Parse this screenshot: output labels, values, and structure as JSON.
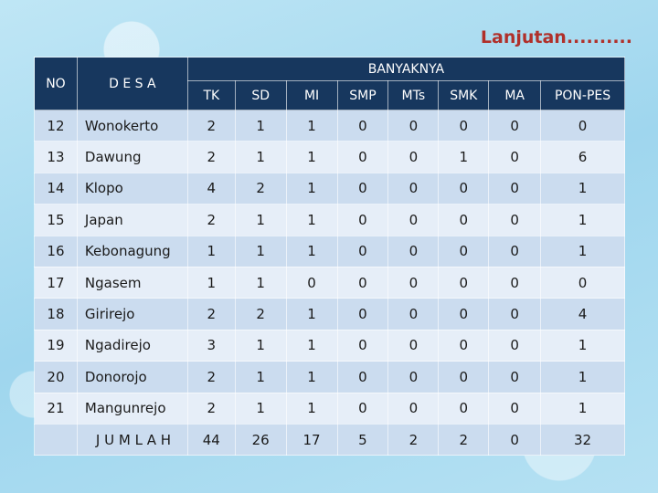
{
  "header": {
    "title": "Lanjutan.........."
  },
  "table": {
    "head": {
      "no": "NO",
      "desa": "D E S A",
      "group": "BANYAKNYA",
      "columns": [
        "TK",
        "SD",
        "MI",
        "SMP",
        "MTs",
        "SMK",
        "MA",
        "PON-PES"
      ]
    },
    "rows": [
      [
        12,
        "Wonokerto",
        2,
        1,
        1,
        0,
        0,
        0,
        0,
        0
      ],
      [
        13,
        "Dawung",
        2,
        1,
        1,
        0,
        0,
        1,
        0,
        6
      ],
      [
        14,
        "Klopo",
        4,
        2,
        1,
        0,
        0,
        0,
        0,
        1
      ],
      [
        15,
        "Japan",
        2,
        1,
        1,
        0,
        0,
        0,
        0,
        1
      ],
      [
        16,
        "Kebonagung",
        1,
        1,
        1,
        0,
        0,
        0,
        0,
        1
      ],
      [
        17,
        "Ngasem",
        1,
        1,
        0,
        0,
        0,
        0,
        0,
        0
      ],
      [
        18,
        "Girirejo",
        2,
        2,
        1,
        0,
        0,
        0,
        0,
        4
      ],
      [
        19,
        "Ngadirejo",
        3,
        1,
        1,
        0,
        0,
        0,
        0,
        1
      ],
      [
        20,
        "Donorojo",
        2,
        1,
        1,
        0,
        0,
        0,
        0,
        1
      ],
      [
        21,
        "Mangunrejo",
        2,
        1,
        1,
        0,
        0,
        0,
        0,
        1
      ]
    ],
    "total": {
      "label": "J U M L A H",
      "values": [
        44,
        26,
        17,
        5,
        2,
        2,
        0,
        32
      ]
    }
  }
}
